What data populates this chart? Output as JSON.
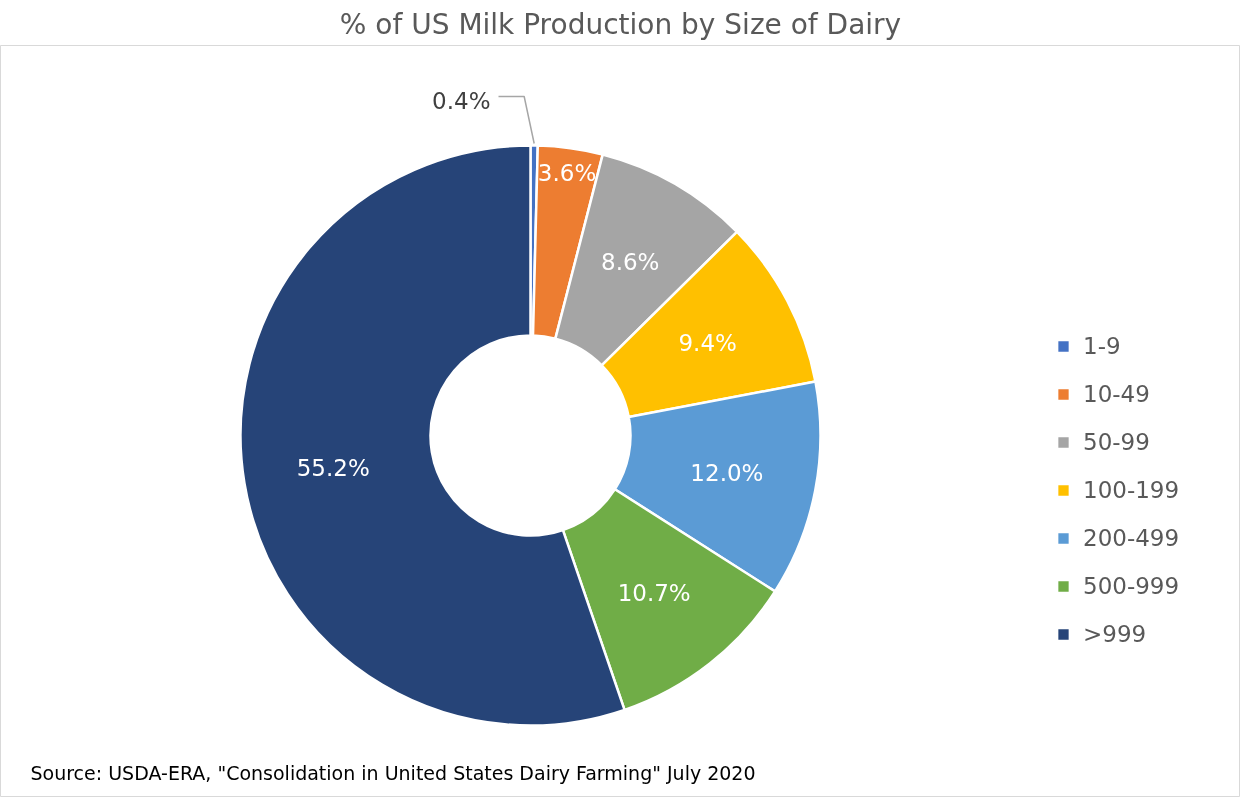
{
  "chart_data": {
    "type": "donut",
    "title": "% of US Milk Production by Size of Dairy",
    "categories": [
      "1-9",
      "10-49",
      "50-99",
      "100-199",
      "200-499",
      "500-999",
      ">999"
    ],
    "values": [
      0.4,
      3.6,
      8.6,
      9.4,
      12.0,
      10.7,
      55.2
    ],
    "colors": [
      "#4472c4",
      "#ed7d31",
      "#a5a5a5",
      "#ffc000",
      "#5b9bd5",
      "#70ad47",
      "#264478"
    ],
    "value_labels": [
      "0.4%",
      "3.6%",
      "8.6%",
      "9.4%",
      "12.0%",
      "10.7%",
      "55.2%"
    ],
    "legend": "right",
    "annotations": [
      "Source: USDA-ERA, \"Consolidation in United States Dairy Farming\" July 2020"
    ]
  }
}
